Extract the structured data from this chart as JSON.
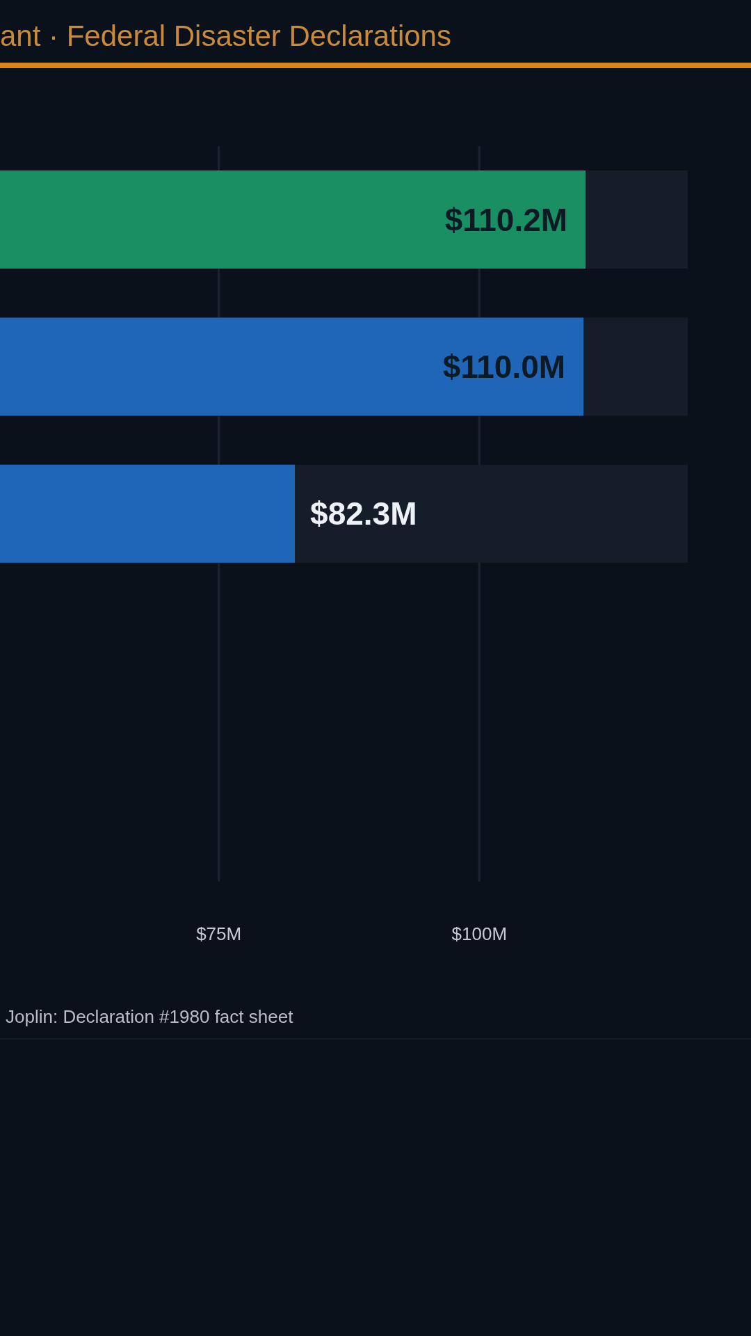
{
  "chart_data": {
    "type": "bar",
    "orientation": "horizontal",
    "subtitle": "ant · Federal Disaster Declarations",
    "categories": [
      null,
      null,
      null,
      null,
      null
    ],
    "values": [
      110.2,
      110.0,
      82.3,
      null,
      null
    ],
    "colors": [
      "#1a8f63",
      "#1f66b8",
      "#1f66b8",
      "#1f66b8",
      "#1f66b8"
    ],
    "value_labels": [
      "$110.2M",
      "$110.0M",
      "$82.3M",
      null,
      null
    ],
    "xlim": [
      54,
      120
    ],
    "xticks": [
      {
        "value": 75,
        "label": "$75M"
      },
      {
        "value": 100,
        "label": "$100M"
      }
    ],
    "grid": "x",
    "annotations": [
      "Joplin: Declaration #1980 fact sheet"
    ]
  }
}
